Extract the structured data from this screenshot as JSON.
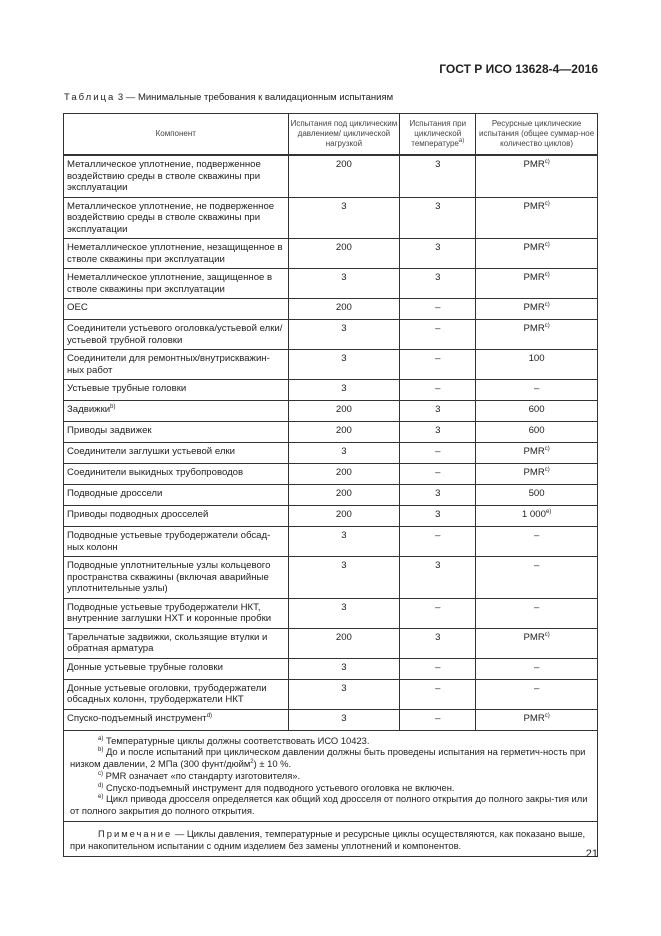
{
  "header": {
    "doc_id": "ГОСТ Р ИСО 13628-4—2016"
  },
  "caption": {
    "label": "Таблица",
    "text": " 3 — Минимальные требования к валидационным испытаниям"
  },
  "table": {
    "columns": [
      {
        "text": "Компонент",
        "sup": ""
      },
      {
        "text": "Испытания под циклическим давлением/ циклической нагрузкой",
        "sup": ""
      },
      {
        "text": "Испытания при циклической температуре",
        "sup": "а)"
      },
      {
        "text": "Ресурсные циклические испытания (общее суммар-ное количество циклов)",
        "sup": ""
      }
    ],
    "rows": [
      {
        "component": "Металлическое уплотнение, подверженное воздействию среды в стволе скважины при эксплуатации",
        "pressure": "200",
        "temp": "3",
        "resource": "PMR",
        "resource_sup": "c)"
      },
      {
        "component": "Металлическое уплотнение, не подверженное воздействию среды в стволе скважины при эксплуатации",
        "pressure": "3",
        "temp": "3",
        "resource": "PMR",
        "resource_sup": "c)"
      },
      {
        "component": "Неметаллическое уплотнение, незащищенное в стволе скважины при эксплуатации",
        "pressure": "200",
        "temp": "3",
        "resource": "PMR",
        "resource_sup": "c)"
      },
      {
        "component": "Неметаллическое уплотнение, защищенное в стволе скважины при эксплуатации",
        "pressure": "3",
        "temp": "3",
        "resource": "PMR",
        "resource_sup": "c)"
      },
      {
        "component": "OEC",
        "pressure": "200",
        "temp": "–",
        "resource": "PMR",
        "resource_sup": "c)"
      },
      {
        "component": "Соединители устьевого оголовка/устьевой елки/устьевой трубной головки",
        "pressure": "3",
        "temp": "–",
        "resource": "PMR",
        "resource_sup": "c)"
      },
      {
        "component": "Соединители для ремонтных/внутрискважин-ных работ",
        "pressure": "3",
        "temp": "–",
        "resource": "100",
        "resource_sup": ""
      },
      {
        "component": "Устьевые трубные головки",
        "pressure": "3",
        "temp": "–",
        "resource": "–",
        "resource_sup": ""
      },
      {
        "component": "Задвижки",
        "component_sup": "b)",
        "pressure": "200",
        "temp": "3",
        "resource": "600",
        "resource_sup": ""
      },
      {
        "component": "Приводы задвижек",
        "pressure": "200",
        "temp": "3",
        "resource": "600",
        "resource_sup": ""
      },
      {
        "component": "Соединители заглушки устьевой елки",
        "pressure": "3",
        "temp": "–",
        "resource": "PMR",
        "resource_sup": "c)"
      },
      {
        "component": "Соединители выкидных трубопроводов",
        "pressure": "200",
        "temp": "–",
        "resource": "PMR",
        "resource_sup": "c)"
      },
      {
        "component": "Подводные дроссели",
        "pressure": "200",
        "temp": "3",
        "resource": "500",
        "resource_sup": ""
      },
      {
        "component": "Приводы подводных дросселей",
        "pressure": "200",
        "temp": "3",
        "resource": "1 000",
        "resource_sup": "e)"
      },
      {
        "component": "Подводные устьевые трубодержатели обсад-ных колонн",
        "pressure": "3",
        "temp": "–",
        "resource": "–",
        "resource_sup": ""
      },
      {
        "component": "Подводные уплотнительные узлы кольцевого пространства скважины (включая аварийные уплотнительные узлы)",
        "pressure": "3",
        "temp": "3",
        "resource": "–",
        "resource_sup": ""
      },
      {
        "component": "Подводные устьевые трубодержатели НКТ, внутренние заглушки НХТ и коронные пробки",
        "pressure": "3",
        "temp": "–",
        "resource": "–",
        "resource_sup": ""
      },
      {
        "component": "Тарельчатые задвижки, скользящие втулки и обратная арматура",
        "pressure": "200",
        "temp": "3",
        "resource": "PMR",
        "resource_sup": "c)"
      },
      {
        "component": "Донные устьевые трубные головки",
        "pressure": "3",
        "temp": "–",
        "resource": "–",
        "resource_sup": ""
      },
      {
        "component": "Донные устьевые оголовки, трубодержатели обсадных колонн, трубодержатели НКТ",
        "pressure": "3",
        "temp": "–",
        "resource": "–",
        "resource_sup": ""
      },
      {
        "component": "Спуско-подъемный инструмент",
        "component_sup": "d)",
        "pressure": "3",
        "temp": "–",
        "resource": "PMR",
        "resource_sup": "c)"
      }
    ],
    "footnotes": [
      {
        "mark": "a)",
        "text": " Температурные циклы должны соответствовать ИСО 10423."
      },
      {
        "mark": "b)",
        "text": " До и после испытаний при циклическом давлении должны быть проведены испытания на герметич-ность при низком давлении, 2 МПа (300 фунт/дюйм",
        "sup2": "2",
        "tail": ") ± 10 %."
      },
      {
        "mark": "c)",
        "text": " PMR означает «по стандарту изготовителя»."
      },
      {
        "mark": "d)",
        "text": " Спуско-подъемный инструмент для подводного устьевого оголовка не включен."
      },
      {
        "mark": "e)",
        "text": " Цикл привода дросселя определяется как общий ход дросселя от полного открытия до полного закры-тия или от полного закрытия до полного открытия."
      }
    ],
    "note": {
      "label": "Примечание",
      "text": " — Циклы давления, температурные и ресурсные циклы осуществляются, как показано выше, при накопительном испытании с одним изделием без замены уплотнений и компонентов."
    }
  },
  "page_number": "21"
}
